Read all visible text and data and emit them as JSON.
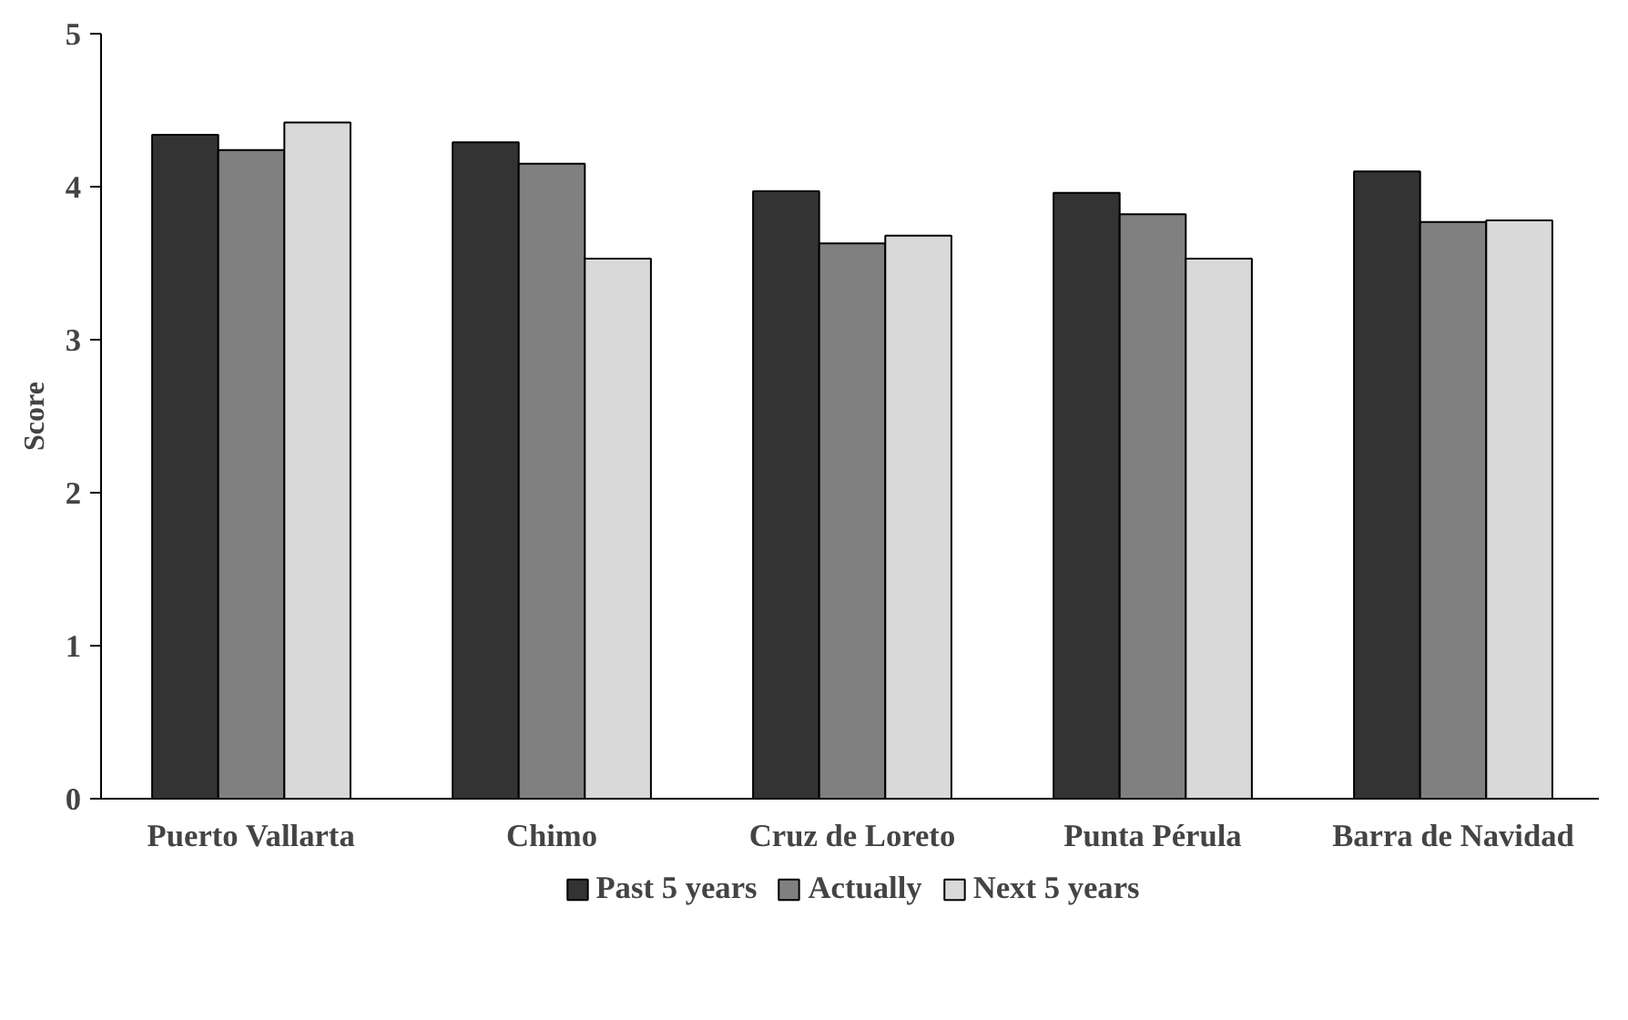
{
  "chart_data": {
    "type": "bar",
    "ylabel": "Score",
    "categories": [
      "Puerto Vallarta",
      "Chimo",
      "Cruz de Loreto",
      "Punta Pérula",
      "Barra de Navidad"
    ],
    "series": [
      {
        "name": "Past 5 years",
        "color": "#333333",
        "values": [
          4.34,
          4.29,
          3.97,
          3.96,
          4.1
        ]
      },
      {
        "name": "Actually",
        "color": "#808080",
        "values": [
          4.24,
          4.15,
          3.63,
          3.82,
          3.77
        ]
      },
      {
        "name": "Next 5 years",
        "color": "#d9d9d9",
        "values": [
          4.42,
          3.53,
          3.68,
          3.53,
          3.78
        ]
      }
    ],
    "ylim": [
      0,
      5
    ],
    "yticks": [
      0,
      1,
      2,
      3,
      4,
      5
    ],
    "grid": false,
    "legend": "bottom"
  }
}
